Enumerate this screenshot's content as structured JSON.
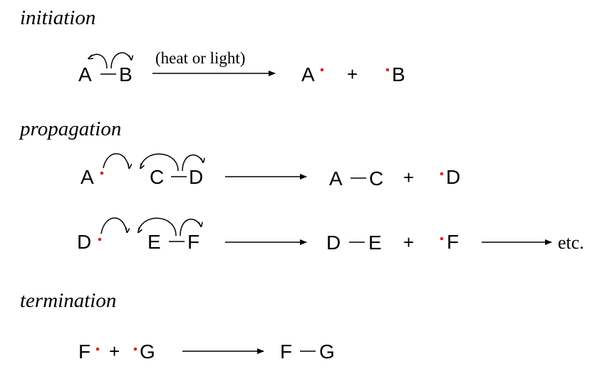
{
  "colors": {
    "ink": "#000000",
    "radical_dot": "#e02020",
    "background": "#ffffff"
  },
  "sections": {
    "initiation": {
      "heading": "initiation",
      "reactant_left": "A",
      "reactant_right": "B",
      "condition": "(heat or light)",
      "product_left": "A",
      "plus": "+",
      "product_right": "B"
    },
    "propagation": {
      "heading": "propagation",
      "step1": {
        "radical": "A",
        "bond_left": "C",
        "bond_right": "D",
        "product_left": "A",
        "product_right": "C",
        "plus": "+",
        "new_radical": "D"
      },
      "step2": {
        "radical": "D",
        "bond_left": "E",
        "bond_right": "F",
        "product_left": "D",
        "product_right": "E",
        "plus": "+",
        "new_radical": "F",
        "continuation": "etc."
      }
    },
    "termination": {
      "heading": "termination",
      "radical_left": "F",
      "plus": "+",
      "radical_right": "G",
      "product_left": "F",
      "product_right": "G"
    }
  }
}
